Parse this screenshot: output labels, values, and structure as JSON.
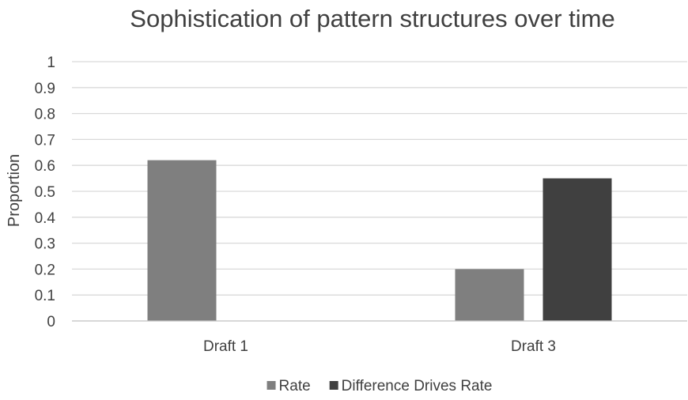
{
  "chart_data": {
    "type": "bar",
    "title": "Sophistication of pattern structures over time",
    "xlabel": "",
    "ylabel": "Proportion",
    "categories": [
      "Draft 1",
      "Draft 3"
    ],
    "series": [
      {
        "name": "Rate",
        "values": [
          0.62,
          0.2
        ],
        "color": "#7f7f7f"
      },
      {
        "name": "Difference Drives Rate",
        "values": [
          0,
          0.55
        ],
        "color": "#404040"
      }
    ],
    "ylim": [
      0,
      1
    ],
    "yticks": [
      "0",
      "0.1",
      "0.2",
      "0.3",
      "0.4",
      "0.5",
      "0.6",
      "0.7",
      "0.8",
      "0.9",
      "1"
    ],
    "grid": true,
    "legend_position": "bottom"
  }
}
